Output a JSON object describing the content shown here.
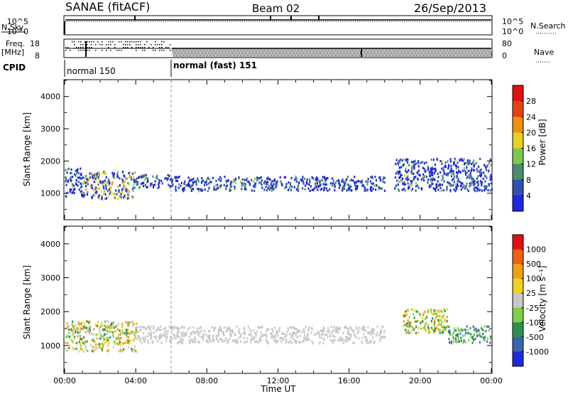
{
  "header": {
    "station": "SANAE (fitACF)",
    "beam": "Beam 02",
    "date": "26/Sep/2013"
  },
  "status_panels": {
    "nsky": {
      "label": "N.Sky",
      "tick_top": "10^5",
      "tick_bottom": "10^0"
    },
    "nsearch": {
      "label": "N.Search",
      "tick_top": "10^5",
      "tick_bottom": "10^0"
    },
    "freq": {
      "label_line1": "Freq.",
      "label_line2": "[MHz]",
      "tick_top": "18",
      "tick_bottom": "8"
    },
    "nave": {
      "label": "Nave",
      "tick_top": "80",
      "tick_bottom": "0"
    },
    "cpid": {
      "label": "CPID",
      "modes": [
        {
          "name": "normal 150",
          "start_hour": 0.0,
          "end_hour": 6.0
        },
        {
          "name": "normal (fast) 151",
          "start_hour": 6.0,
          "end_hour": 24.0
        }
      ]
    }
  },
  "chart_data": [
    {
      "type": "heatmap",
      "name": "power",
      "ylabel": "Slant Range [km]",
      "xlim": [
        0,
        24
      ],
      "ylim": [
        200,
        4500
      ],
      "yticks": [
        "1000",
        "2000",
        "3000",
        "4000"
      ],
      "colorbar": {
        "label": "Power [dB]",
        "ticks": [
          "4",
          "8",
          "12",
          "16",
          "20",
          "24",
          "28"
        ],
        "colors": [
          "#1e28dc",
          "#3250b4",
          "#4a8c6e",
          "#7cc850",
          "#e8d020",
          "#f09010",
          "#e84010",
          "#e01010"
        ]
      },
      "echo_regions": [
        {
          "t0": 0.0,
          "t1": 1.0,
          "r0": 900,
          "r1": 1800,
          "value": "8-16 dB"
        },
        {
          "t0": 1.0,
          "t1": 4.0,
          "r0": 850,
          "r1": 1700,
          "value": "12-24 dB"
        },
        {
          "t0": 4.0,
          "t1": 6.0,
          "r0": 1200,
          "r1": 1600,
          "value": "4-8 dB"
        },
        {
          "t0": 6.0,
          "t1": 18.0,
          "r0": 1100,
          "r1": 1550,
          "value": "4-16 dB"
        },
        {
          "t0": 18.5,
          "t1": 24.0,
          "r0": 1100,
          "r1": 2100,
          "value": "4-20 dB"
        }
      ]
    },
    {
      "type": "heatmap",
      "name": "velocity",
      "ylabel": "Slant Range [km]",
      "xlabel": "Time UT",
      "xlim": [
        0,
        24
      ],
      "ylim": [
        200,
        4500
      ],
      "xticks": [
        "00:00",
        "04:00",
        "08:00",
        "12:00",
        "16:00",
        "20:00",
        "00:00"
      ],
      "yticks": [
        "1000",
        "2000",
        "3000",
        "4000"
      ],
      "colorbar": {
        "label": "Velocity [m s⁻¹]",
        "ticks": [
          "1000",
          "500",
          "100",
          "25",
          "-25",
          "-100",
          "-500",
          "-1000"
        ],
        "colors": [
          "#1e28dc",
          "#3a64b4",
          "#2e9050",
          "#7cd048",
          "#c8c8c8",
          "#f0d020",
          "#f0a010",
          "#f06010",
          "#e01010"
        ]
      },
      "echo_regions": [
        {
          "t0": 0.0,
          "t1": 4.0,
          "r0": 850,
          "r1": 1750,
          "value": "-500 to 500 m/s (mixed)"
        },
        {
          "t0": 4.0,
          "t1": 18.0,
          "r0": 1100,
          "r1": 1600,
          "value": "ground scatter"
        },
        {
          "t0": 19.0,
          "t1": 21.5,
          "r0": 1400,
          "r1": 2100,
          "value": "-100 to 500 m/s"
        },
        {
          "t0": 21.5,
          "t1": 24.0,
          "r0": 1100,
          "r1": 1600,
          "value": "100 to 1000 m/s"
        }
      ]
    }
  ]
}
